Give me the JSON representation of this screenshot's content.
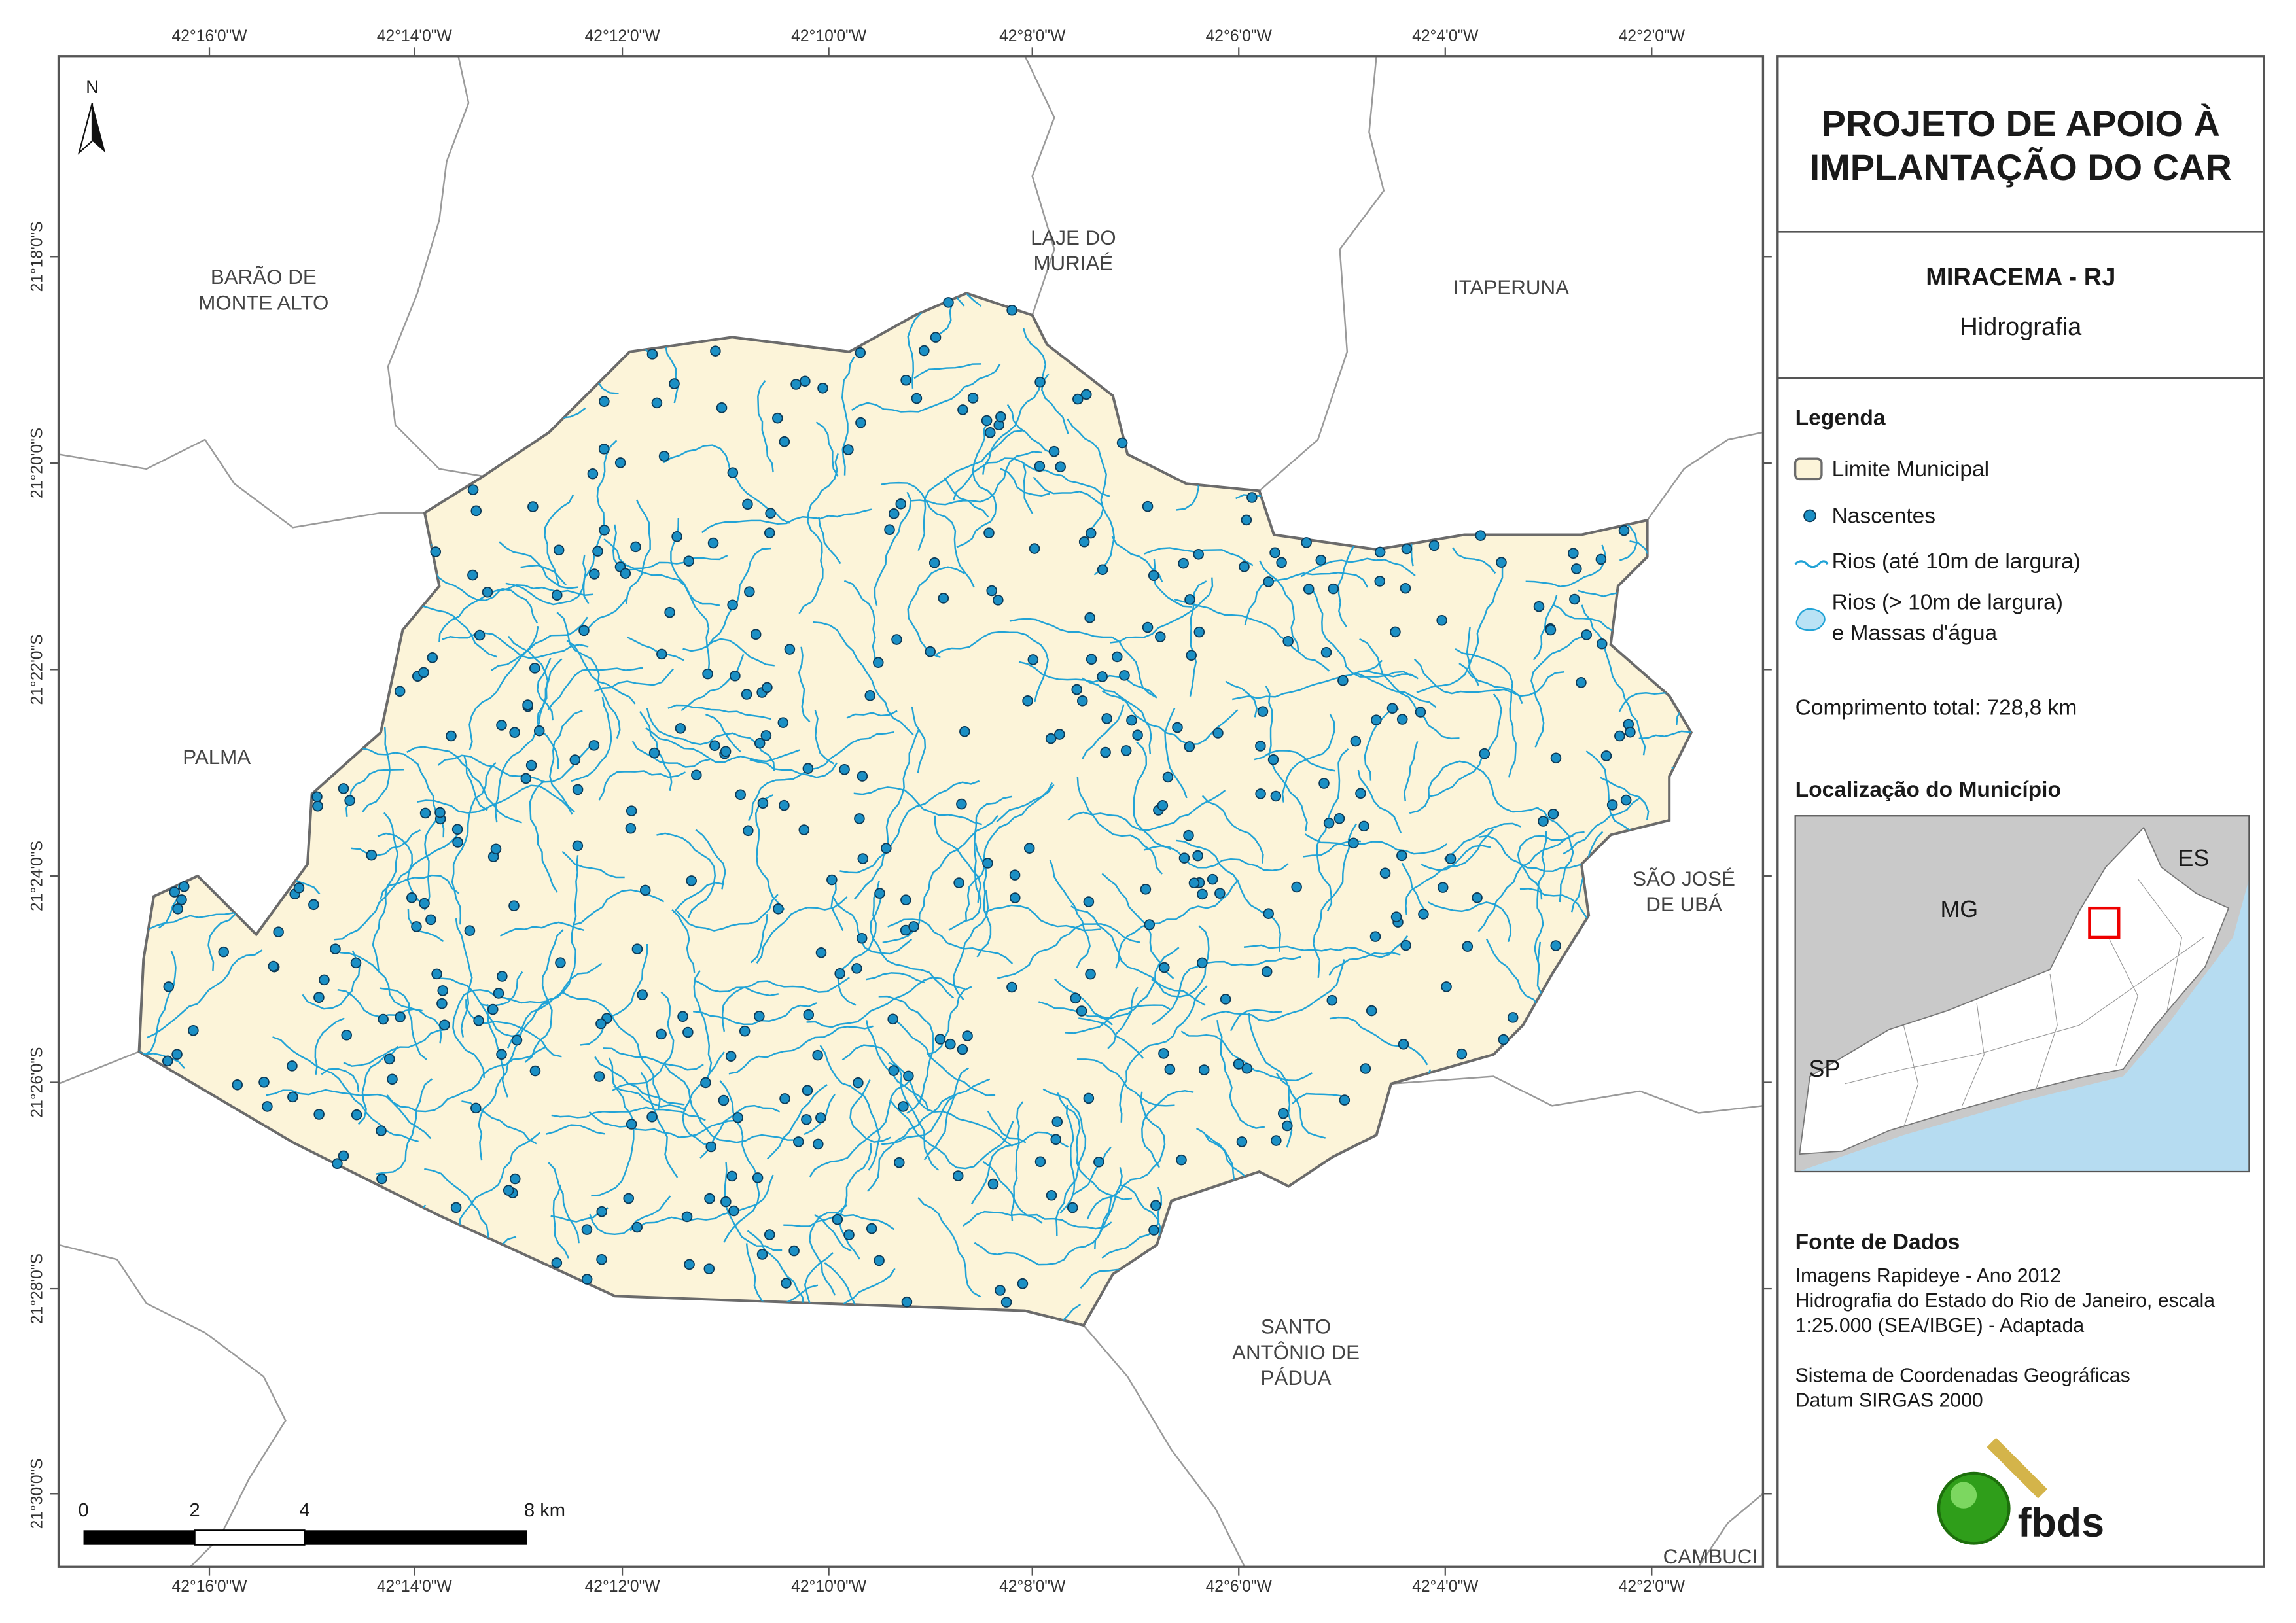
{
  "map": {
    "north": "N",
    "neighbors": [
      {
        "lines": [
          "BARÃO DE",
          "MONTE ALTO"
        ]
      },
      {
        "lines": [
          "LAJE DO",
          "MURIAÉ"
        ]
      },
      {
        "lines": [
          "ITAPERUNA"
        ]
      },
      {
        "lines": [
          "PALMA"
        ]
      },
      {
        "lines": [
          "SÃO JOSÉ",
          "DE UBÁ"
        ]
      },
      {
        "lines": [
          "SANTO",
          "ANTÔNIO DE",
          "PÁDUA"
        ]
      },
      {
        "lines": [
          "CAMBUCI"
        ]
      }
    ],
    "longitude_labels": [
      "42°16'0\"W",
      "42°14'0\"W",
      "42°12'0\"W",
      "42°10'0\"W",
      "42°8'0\"W",
      "42°6'0\"W",
      "42°4'0\"W",
      "42°2'0\"W"
    ],
    "latitude_labels": [
      "21°18'0\"S",
      "21°20'0\"S",
      "21°22'0\"S",
      "21°24'0\"S",
      "21°26'0\"S",
      "21°28'0\"S",
      "21°30'0\"S"
    ],
    "scale_bar": {
      "labels": [
        "0",
        "2",
        "4",
        "8 km"
      ]
    }
  },
  "panel": {
    "title": [
      "PROJETO DE APOIO À",
      "IMPLANTAÇÃO DO CAR"
    ],
    "municipality": "MIRACEMA - RJ",
    "theme": "Hidrografia",
    "legend": {
      "title": "Legenda",
      "items": [
        {
          "lines": [
            "Limite Municipal"
          ]
        },
        {
          "lines": [
            "Nascentes"
          ]
        },
        {
          "lines": [
            "Rios (até 10m de largura)"
          ]
        },
        {
          "lines": [
            "Rios (> 10m de largura)",
            "e Massas d'água"
          ]
        }
      ]
    },
    "total_length": "Comprimento total:  728,8 km",
    "location": {
      "title": "Localização do Município",
      "labels": [
        "MG",
        "ES",
        "SP"
      ]
    },
    "sources": {
      "title": "Fonte de Dados",
      "groups": [
        [
          "Imagens Rapideye - Ano 2012",
          "Hidrografia do Estado do Rio de Janeiro, escala",
          "1:25.000 (SEA/IBGE) - Adaptada"
        ],
        [
          "Sistema de Coordenadas Geográficas",
          "Datum SIRGAS 2000"
        ]
      ]
    },
    "logo": "fbds"
  }
}
